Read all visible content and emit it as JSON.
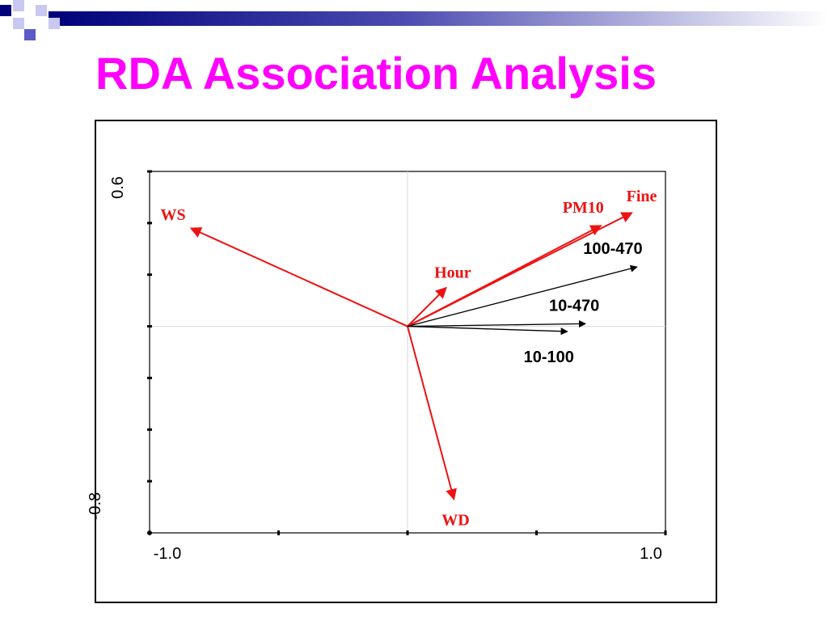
{
  "slide": {
    "title": "RDA Association Analysis"
  },
  "colors": {
    "title": "#ff00ff",
    "env_vectors": "#ee1111",
    "species_vectors": "#000000",
    "deco_dark": "#00007a",
    "deco_mid": "#5a5ac8",
    "deco_light": "#c8c8f0"
  },
  "chart_data": {
    "type": "biplot",
    "xlim": [
      -1.0,
      1.0
    ],
    "ylim": [
      -0.8,
      0.6
    ],
    "x_tick_labels": [
      "-1.0",
      "1.0"
    ],
    "y_tick_labels": [
      "0.6",
      "-0.8"
    ],
    "grid": "zero lines only",
    "series": [
      {
        "name": "",
        "color": "#ee1111",
        "vectors": [
          {
            "label": "WS",
            "x": -0.84,
            "y": 0.38
          },
          {
            "label": "Hour",
            "x": 0.15,
            "y": 0.15
          },
          {
            "label": "PM10",
            "x": 0.75,
            "y": 0.39
          },
          {
            "label": "Fine",
            "x": 0.87,
            "y": 0.44
          },
          {
            "label": "WD",
            "x": 0.18,
            "y": -0.67
          }
        ]
      },
      {
        "name": "",
        "color": "#000000",
        "vectors": [
          {
            "label": "100-470",
            "x": 0.89,
            "y": 0.23
          },
          {
            "label": "10-470",
            "x": 0.69,
            "y": 0.01
          },
          {
            "label": "10-100",
            "x": 0.62,
            "y": -0.02
          }
        ]
      }
    ]
  }
}
